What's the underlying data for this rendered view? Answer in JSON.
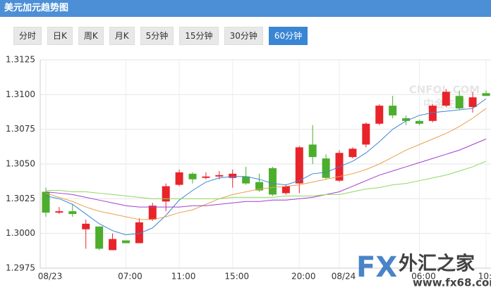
{
  "header": {
    "title": "美元加元趋势图"
  },
  "tabs": {
    "items": [
      "分时",
      "日K",
      "周K",
      "月K",
      "5分钟",
      "15分钟",
      "30分钟",
      "60分钟"
    ],
    "active": 7
  },
  "chart_data": {
    "type": "candlestick",
    "categories": [
      "08/23",
      null,
      null,
      null,
      null,
      null,
      "07:00",
      null,
      null,
      null,
      "11:00",
      null,
      null,
      null,
      "15:00",
      null,
      null,
      null,
      null,
      "20:00",
      null,
      null,
      "08/24",
      null,
      null,
      null,
      null,
      null,
      "06:00",
      null,
      null,
      null,
      null,
      "10:00"
    ],
    "open": [
      1.303,
      1.3015,
      1.3016,
      1.3003,
      1.3005,
      1.2988,
      1.2995,
      1.2993,
      1.301,
      1.3023,
      1.3035,
      1.3043,
      1.304,
      1.3041,
      1.304,
      1.3041,
      1.3037,
      1.3047,
      1.3029,
      1.3036,
      1.3064,
      1.3054,
      1.3038,
      1.3055,
      1.3064,
      1.3079,
      1.3092,
      1.3083,
      1.3081,
      1.3081,
      1.3092,
      1.3099,
      1.3091,
      1.3101
    ],
    "high": [
      1.3033,
      1.3019,
      1.3021,
      1.301,
      1.3005,
      1.3,
      1.2995,
      1.3011,
      1.3022,
      1.3036,
      1.3046,
      1.3044,
      1.3044,
      1.3045,
      1.3046,
      1.3048,
      1.3043,
      1.3048,
      1.3035,
      1.3063,
      1.3078,
      1.3057,
      1.306,
      1.3062,
      1.308,
      1.3093,
      1.3099,
      1.3085,
      1.3082,
      1.3093,
      1.3104,
      1.3103,
      1.3102,
      1.3103
    ],
    "low": [
      1.3012,
      1.3014,
      1.3012,
      1.2989,
      1.2988,
      1.2988,
      1.2993,
      1.2993,
      1.3009,
      1.3016,
      1.3034,
      1.3036,
      1.3039,
      1.3039,
      1.3033,
      1.3035,
      1.303,
      1.3027,
      1.3028,
      1.3029,
      1.305,
      1.3039,
      1.3037,
      1.3054,
      1.3062,
      1.3078,
      1.3083,
      1.3078,
      1.3078,
      1.308,
      1.3091,
      1.3089,
      1.3087,
      1.3099
    ],
    "close": [
      1.3015,
      1.3016,
      1.3014,
      1.3007,
      1.2989,
      1.2996,
      1.2993,
      1.3008,
      1.302,
      1.3034,
      1.3044,
      1.3039,
      1.3041,
      1.3042,
      1.3043,
      1.3036,
      1.3031,
      1.3028,
      1.3034,
      1.3062,
      1.3055,
      1.304,
      1.3058,
      1.3061,
      1.3079,
      1.3092,
      1.3085,
      1.3081,
      1.3079,
      1.3092,
      1.3102,
      1.309,
      1.3098,
      1.3099
    ],
    "up_color": "#e8242a",
    "down_color": "#4cae2c",
    "lines": [
      {
        "color": "#3b86d8",
        "values": [
          1.3027,
          1.3025,
          1.3021,
          1.3014,
          1.3007,
          1.3002,
          1.2999,
          1.3,
          1.3004,
          1.3013,
          1.3024,
          1.3031,
          1.3037,
          1.304,
          1.3041,
          1.3041,
          1.3039,
          1.3036,
          1.3035,
          1.3038,
          1.3043,
          1.3044,
          1.3048,
          1.3052,
          1.3058,
          1.3066,
          1.3075,
          1.3081,
          1.3085,
          1.3087,
          1.3088,
          1.3089,
          1.309,
          1.3097
        ]
      },
      {
        "color": "#e8a050",
        "values": [
          1.3029,
          1.3026,
          1.3023,
          1.3019,
          1.3016,
          1.3014,
          1.3012,
          1.301,
          1.301,
          1.3012,
          1.3015,
          1.3017,
          1.3021,
          1.3025,
          1.3028,
          1.303,
          1.3032,
          1.3033,
          1.3034,
          1.3035,
          1.3037,
          1.3039,
          1.3041,
          1.3043,
          1.3046,
          1.305,
          1.3055,
          1.306,
          1.3064,
          1.3068,
          1.3072,
          1.3077,
          1.3083,
          1.309
        ]
      },
      {
        "color": "#a040d0",
        "values": [
          1.303,
          1.3029,
          1.3028,
          1.3026,
          1.3024,
          1.3022,
          1.302,
          1.3019,
          1.3019,
          1.3019,
          1.3019,
          1.302,
          1.302,
          1.3021,
          1.3022,
          1.3023,
          1.3023,
          1.3024,
          1.3024,
          1.3025,
          1.3026,
          1.3028,
          1.303,
          1.3034,
          1.3038,
          1.3042,
          1.3045,
          1.3048,
          1.3051,
          1.3054,
          1.3057,
          1.306,
          1.3064,
          1.3068
        ]
      },
      {
        "color": "#8fd860",
        "values": [
          1.3031,
          1.3031,
          1.303,
          1.303,
          1.3029,
          1.3028,
          1.3027,
          1.3026,
          1.3025,
          1.3025,
          1.3025,
          1.3025,
          1.3025,
          1.3025,
          1.3026,
          1.3026,
          1.3026,
          1.3026,
          1.3027,
          1.3027,
          1.3027,
          1.3028,
          1.3028,
          1.303,
          1.3032,
          1.3033,
          1.3035,
          1.3036,
          1.3038,
          1.304,
          1.3042,
          1.3045,
          1.3048,
          1.3052
        ]
      }
    ],
    "ylim": [
      1.2975,
      1.3125
    ],
    "yticks": [
      1.2975,
      {
        "value": 1.3,
        "label": "1.3000"
      },
      1.3025,
      {
        "value": 1.305,
        "label": "1.3050"
      },
      1.3075,
      {
        "value": 1.31,
        "label": "1.3100"
      },
      1.3125
    ],
    "grid": true,
    "watermarks": [
      "CNFOL.COM",
      "中金在线",
      "FX",
      "外汇之家",
      "www.fx68.com"
    ]
  }
}
